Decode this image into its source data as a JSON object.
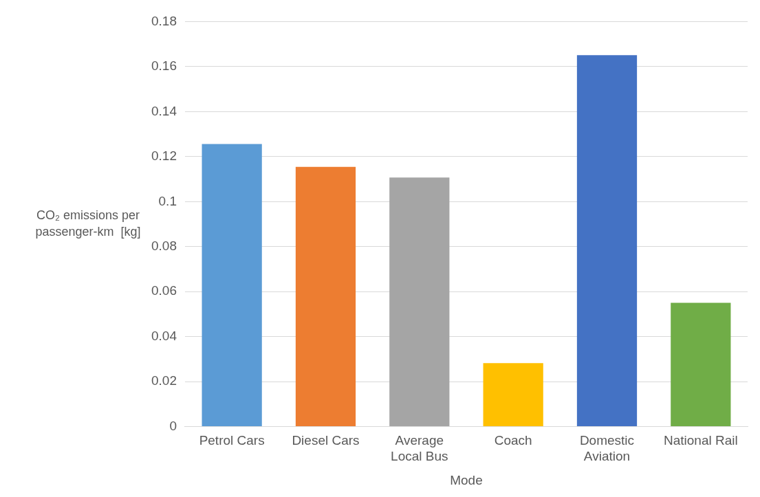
{
  "chart_data": {
    "type": "bar",
    "xlabel": "Mode",
    "ylabel": "CO₂ emissions per passenger-km  [kg]",
    "categories": [
      "Petrol Cars",
      "Diesel Cars",
      "Average Local Bus",
      "Coach",
      "Domestic Aviation",
      "National Rail"
    ],
    "values": [
      0.1256,
      0.1154,
      0.1107,
      0.0282,
      0.1651,
      0.055
    ],
    "colors": [
      "#5b9bd5",
      "#ed7d31",
      "#a5a5a5",
      "#ffc000",
      "#4472c4",
      "#70ad47"
    ],
    "ylim": [
      0,
      0.18
    ],
    "yticks": [
      0,
      0.02,
      0.04,
      0.06,
      0.08,
      0.1,
      0.12,
      0.14,
      0.16,
      0.18
    ],
    "grid": "y",
    "legend": false
  }
}
